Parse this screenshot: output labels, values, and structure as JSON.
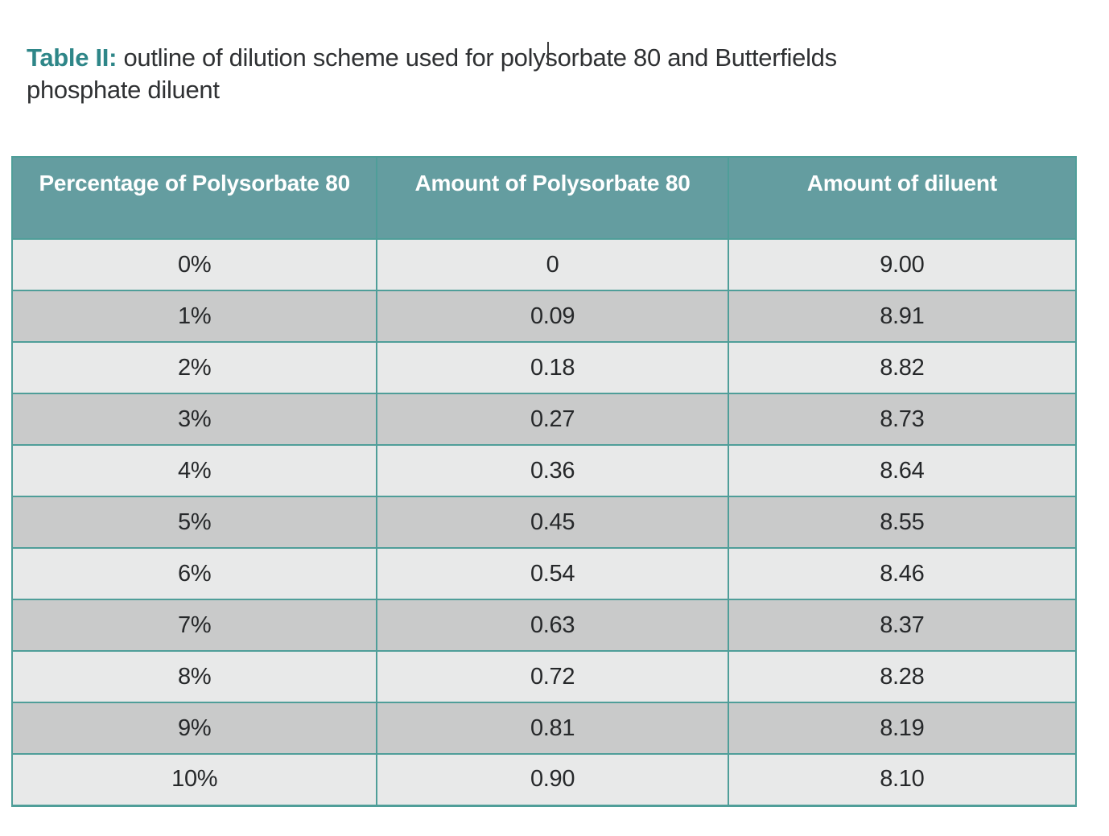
{
  "title": {
    "label": "Table II:",
    "line1": "outline of dilution scheme used for polysorbate 80 and Butterfields",
    "line2": "phosphate diluent"
  },
  "table": {
    "columns": [
      "Percentage of Polysorbate 80",
      "Amount of Polysorbate 80",
      "Amount of diluent"
    ],
    "rows": [
      [
        "0%",
        "0",
        "9.00"
      ],
      [
        "1%",
        "0.09",
        "8.91"
      ],
      [
        "2%",
        "0.18",
        "8.82"
      ],
      [
        "3%",
        "0.27",
        "8.73"
      ],
      [
        "4%",
        "0.36",
        "8.64"
      ],
      [
        "5%",
        "0.45",
        "8.55"
      ],
      [
        "6%",
        "0.54",
        "8.46"
      ],
      [
        "7%",
        "0.63",
        "8.37"
      ],
      [
        "8%",
        "0.72",
        "8.28"
      ],
      [
        "9%",
        "0.81",
        "8.19"
      ],
      [
        "10%",
        "0.90",
        "8.10"
      ]
    ]
  },
  "colors": {
    "accent_teal": "#2E8688",
    "header_bg": "#649DA0",
    "border_teal": "#4F9E99",
    "row_light": "#E8E9E9",
    "row_dark": "#C9CACA",
    "text_dark": "#26282A",
    "header_text": "#FFFFFF",
    "divider_line": "#3A3A3A",
    "page_bg": "#FFFFFF"
  }
}
